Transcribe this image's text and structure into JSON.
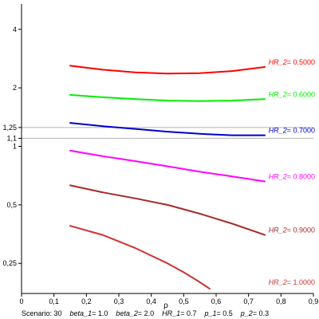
{
  "chart_data": {
    "type": "line",
    "xlabel": "ρ",
    "xlim": [
      0,
      0.9
    ],
    "ylim": [
      0.175,
      5.4
    ],
    "y_scale": "log",
    "x_ticks": [
      {
        "value": 0,
        "label": "0"
      },
      {
        "value": 0.1,
        "label": "0,1"
      },
      {
        "value": 0.2,
        "label": "0,2"
      },
      {
        "value": 0.3,
        "label": "0,3"
      },
      {
        "value": 0.4,
        "label": "0,4"
      },
      {
        "value": 0.5,
        "label": "0,5"
      },
      {
        "value": 0.6,
        "label": "0,6"
      },
      {
        "value": 0.7,
        "label": "0,7"
      },
      {
        "value": 0.8,
        "label": "0,8"
      },
      {
        "value": 0.9,
        "label": "0,9"
      }
    ],
    "y_ticks": [
      {
        "value": 4,
        "label": "4"
      },
      {
        "value": 2,
        "label": "2"
      },
      {
        "value": 1.25,
        "label": "1,25"
      },
      {
        "value": 1.1,
        "label": "1,1"
      },
      {
        "value": 1,
        "label": "1"
      },
      {
        "value": 0.5,
        "label": "0,5"
      },
      {
        "value": 0.25,
        "label": "0,25"
      }
    ],
    "reference_lines": [
      1.25,
      1.1
    ],
    "series": [
      {
        "name": "HR_2",
        "value_label": "0.5000",
        "color": "#ff0000",
        "x": [
          0.15,
          0.25,
          0.35,
          0.45,
          0.55,
          0.65,
          0.75
        ],
        "y": [
          2.6,
          2.48,
          2.4,
          2.37,
          2.38,
          2.44,
          2.56
        ]
      },
      {
        "name": "HR_2",
        "value_label": "0.6000",
        "color": "#00ee00",
        "x": [
          0.15,
          0.25,
          0.35,
          0.45,
          0.55,
          0.65,
          0.75
        ],
        "y": [
          1.84,
          1.79,
          1.75,
          1.72,
          1.71,
          1.72,
          1.75
        ]
      },
      {
        "name": "HR_2",
        "value_label": "0.7000",
        "color": "#0000cc",
        "x": [
          0.15,
          0.25,
          0.35,
          0.45,
          0.55,
          0.65,
          0.75
        ],
        "y": [
          1.32,
          1.27,
          1.23,
          1.19,
          1.16,
          1.14,
          1.14
        ]
      },
      {
        "name": "HR_2",
        "value_label": "0.8000",
        "color": "#ff00ff",
        "x": [
          0.15,
          0.25,
          0.35,
          0.45,
          0.55,
          0.65,
          0.75
        ],
        "y": [
          0.95,
          0.89,
          0.84,
          0.79,
          0.74,
          0.7,
          0.66
        ]
      },
      {
        "name": "HR_2",
        "value_label": "0.9000",
        "color": "#a52a2a",
        "x": [
          0.15,
          0.25,
          0.35,
          0.45,
          0.55,
          0.65,
          0.75
        ],
        "y": [
          0.63,
          0.58,
          0.54,
          0.5,
          0.45,
          0.4,
          0.35
        ]
      },
      {
        "name": "HR_2",
        "value_label": "1.0000",
        "color": "#cc3333",
        "x": [
          0.15,
          0.25,
          0.35,
          0.45,
          0.5,
          0.55,
          0.58
        ],
        "y": [
          0.39,
          0.35,
          0.3,
          0.25,
          0.225,
          0.2,
          0.185
        ]
      }
    ],
    "caption": [
      {
        "name": "Scenario",
        "value": "30"
      },
      {
        "name": "beta_1",
        "value": "1.0"
      },
      {
        "name": "beta_2",
        "value": "2.0"
      },
      {
        "name": "HR_1",
        "value": "0.7"
      },
      {
        "name": "p_1",
        "value": "0.5"
      },
      {
        "name": "p_2",
        "value": "0.3"
      }
    ],
    "grid": false,
    "legend": "inline labels at right end of each line"
  }
}
